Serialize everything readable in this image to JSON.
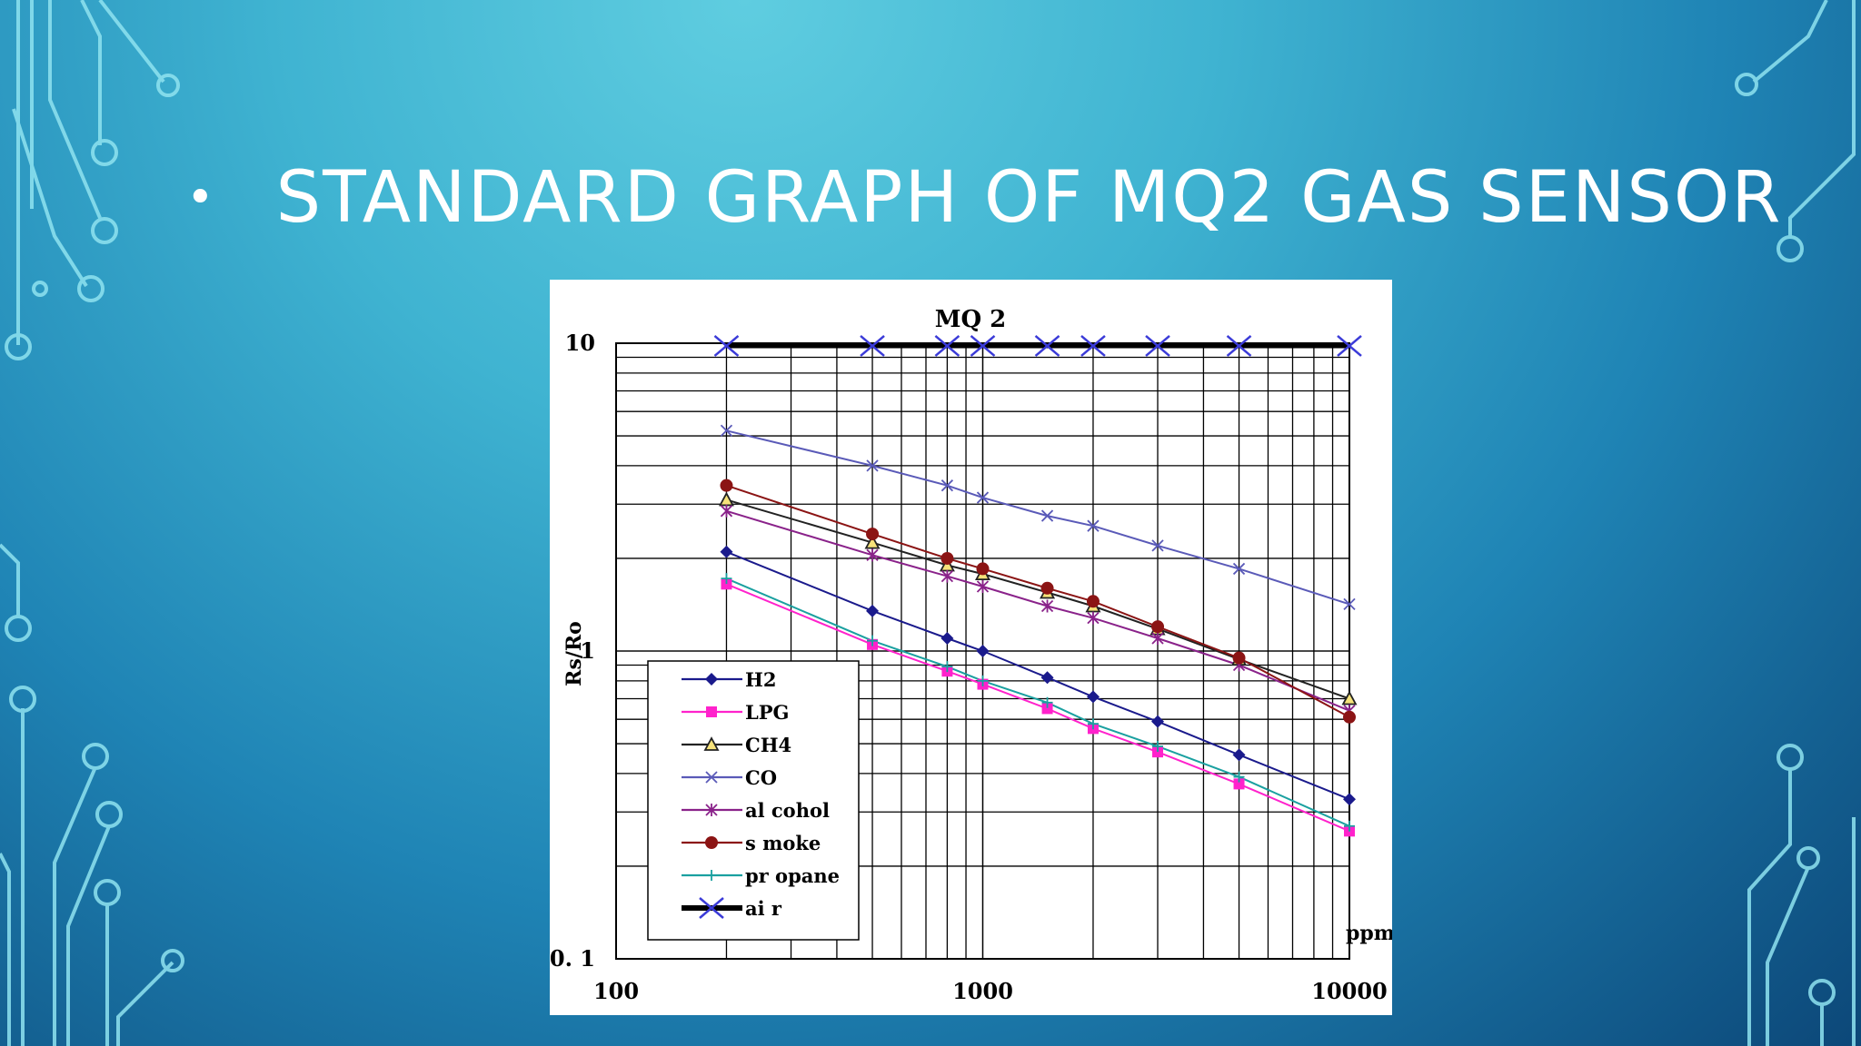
{
  "slide": {
    "bullet": "•",
    "title": "STANDARD GRAPH OF MQ2 GAS SENSOR"
  },
  "colors": {
    "background_light": "#5fcde0",
    "background_dark": "#0c4778",
    "circuit_lines": "#8fe3f0",
    "title": "#ffffff"
  },
  "chart_data": {
    "type": "line",
    "title": "MQ 2",
    "xlabel": "ppm",
    "ylabel": "Rs/Ro",
    "x_scale": "log",
    "y_scale": "log",
    "xlim": [
      100,
      10000
    ],
    "ylim": [
      0.1,
      10
    ],
    "x_tick_labels": [
      "100",
      "1000",
      "10000"
    ],
    "y_tick_labels": [
      "10",
      "1",
      "0. 1"
    ],
    "grid": true,
    "legend_position": "lower-left",
    "x": [
      200,
      500,
      800,
      1000,
      1500,
      2000,
      3000,
      5000,
      10000
    ],
    "series": [
      {
        "name": "H2",
        "color": "#1a1a8c",
        "marker": "diamond",
        "values": [
          2.1,
          1.35,
          1.1,
          1.0,
          0.82,
          0.71,
          0.59,
          0.46,
          0.33
        ]
      },
      {
        "name": "LPG",
        "color": "#ff22cc",
        "marker": "square",
        "values": [
          1.65,
          1.05,
          0.86,
          0.78,
          0.65,
          0.56,
          0.47,
          0.37,
          0.26
        ]
      },
      {
        "name": "CH4",
        "color": "#222222",
        "marker": "triangle",
        "values": [
          3.1,
          2.25,
          1.9,
          1.78,
          1.55,
          1.4,
          1.18,
          0.94,
          0.7
        ]
      },
      {
        "name": "CO",
        "color": "#5a5ab8",
        "marker": "x",
        "values": [
          5.2,
          4.0,
          3.45,
          3.15,
          2.75,
          2.55,
          2.2,
          1.85,
          1.42
        ]
      },
      {
        "name": "alcohol",
        "color": "#8a228a",
        "marker": "star",
        "values": [
          2.85,
          2.05,
          1.75,
          1.62,
          1.4,
          1.28,
          1.1,
          0.9,
          0.64
        ]
      },
      {
        "name": "smoke",
        "color": "#8b1414",
        "marker": "circle",
        "values": [
          3.45,
          2.4,
          2.0,
          1.85,
          1.6,
          1.45,
          1.2,
          0.95,
          0.61
        ]
      },
      {
        "name": "propane",
        "color": "#1aa0a0",
        "marker": "plus",
        "values": [
          1.72,
          1.08,
          0.89,
          0.8,
          0.68,
          0.58,
          0.49,
          0.39,
          0.27
        ]
      },
      {
        "name": "air",
        "color": "#000000",
        "marker": "bigx",
        "values": [
          9.8,
          9.8,
          9.8,
          9.8,
          9.8,
          9.8,
          9.8,
          9.8,
          9.8
        ]
      }
    ],
    "legend_labels": [
      "H2",
      "LPG",
      "CH4",
      "CO",
      "al cohol",
      "s moke",
      "pr opane",
      "ai r"
    ]
  }
}
